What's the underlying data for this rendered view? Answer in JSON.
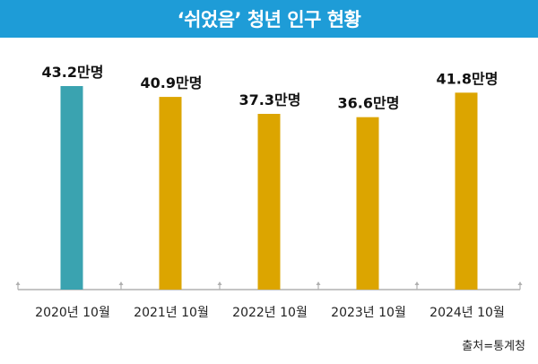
{
  "title": "‘쉬었음’ 청년 인구 현황",
  "source": "출처=통계청",
  "colors": {
    "header_bg": "#1e9cd7",
    "first_bar": "#3aa3b0",
    "bar": "#dca500",
    "axis": "#b0b0b0",
    "label": "#111111"
  },
  "chart_data": {
    "type": "bar",
    "title": "‘쉬었음’ 청년 인구 현황",
    "xlabel": "",
    "ylabel": "",
    "categories": [
      "2020년 10월",
      "2021년 10월",
      "2022년 10월",
      "2023년 10월",
      "2024년 10월"
    ],
    "values": [
      43.2,
      40.9,
      37.3,
      36.6,
      41.8
    ],
    "value_labels": [
      "43.2만명",
      "40.9만명",
      "37.3만명",
      "36.6만명",
      "41.8만명"
    ],
    "unit": "만명",
    "ylim": [
      0,
      50
    ],
    "grid": false,
    "legend": "none"
  }
}
